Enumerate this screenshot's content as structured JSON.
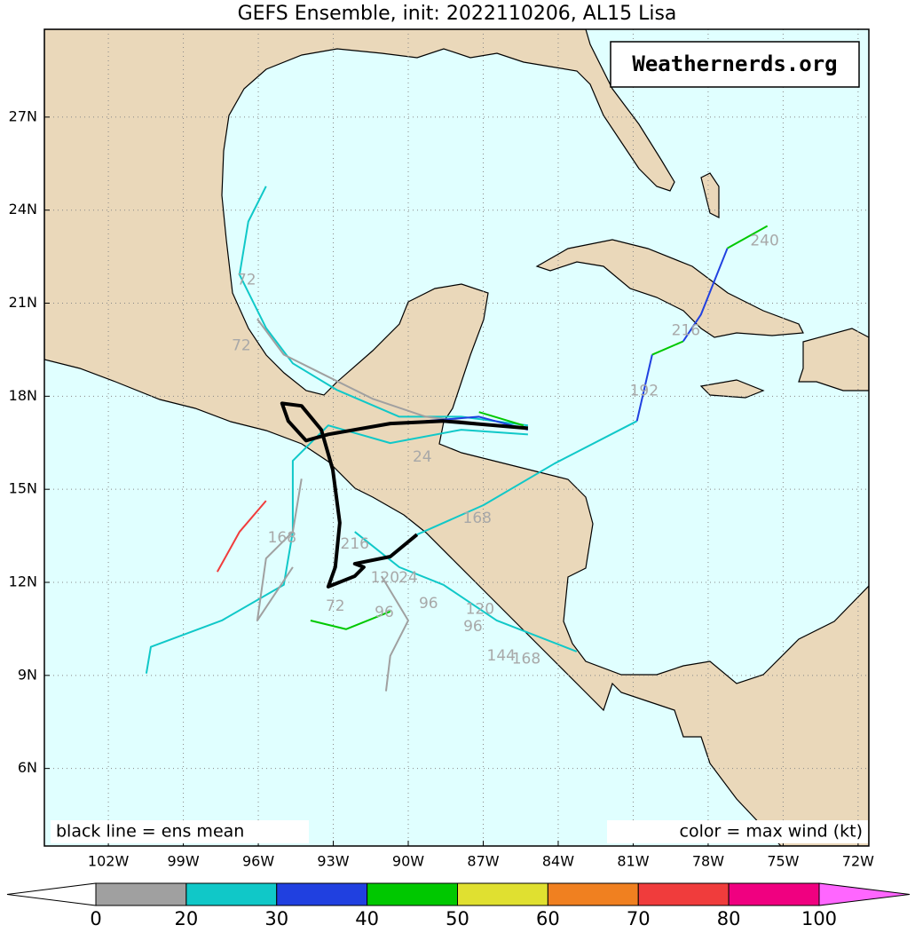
{
  "title": "GEFS Ensemble, init: 2022110206, AL15 Lisa",
  "watermark": "Weathernerds.org",
  "legend_left": "black line = ens mean",
  "legend_right": "color = max wind (kt)",
  "xlim": [
    -104.56,
    -71.57
  ],
  "ylim": [
    3.5,
    29.83
  ],
  "lon_ticks": [
    {
      "value": -102,
      "label": "102W"
    },
    {
      "value": -99,
      "label": "99W"
    },
    {
      "value": -96,
      "label": "96W"
    },
    {
      "value": -93,
      "label": "93W"
    },
    {
      "value": -90,
      "label": "90W"
    },
    {
      "value": -87,
      "label": "87W"
    },
    {
      "value": -84,
      "label": "84W"
    },
    {
      "value": -81,
      "label": "81W"
    },
    {
      "value": -78,
      "label": "78W"
    },
    {
      "value": -75,
      "label": "75W"
    },
    {
      "value": -72,
      "label": "72W"
    }
  ],
  "lat_ticks": [
    {
      "value": 6,
      "label": "6N"
    },
    {
      "value": 9,
      "label": "9N"
    },
    {
      "value": 12,
      "label": "12N"
    },
    {
      "value": 15,
      "label": "15N"
    },
    {
      "value": 18,
      "label": "18N"
    },
    {
      "value": 21,
      "label": "21N"
    },
    {
      "value": 24,
      "label": "24N"
    },
    {
      "value": 27,
      "label": "27N"
    }
  ],
  "colorbar": {
    "bounds": [
      0,
      20,
      30,
      40,
      50,
      60,
      70,
      80,
      100
    ],
    "colors": [
      "#a0a0a0",
      "#10c8c8",
      "#2040e0",
      "#00c800",
      "#e0e030",
      "#f08020",
      "#f03c3c",
      "#f00080"
    ],
    "under_color": "#ffffff",
    "over_color": "#ff66ff"
  },
  "mean_track": {
    "lon": [
      -85.21,
      -88.59,
      -90.72,
      -93.2,
      -94.09,
      -94.8,
      -95.05,
      -94.27,
      -93.48,
      -93.02,
      -92.74,
      -92.92,
      -93.2,
      -92.14,
      -91.78,
      -92.14,
      -90.72,
      -89.65
    ],
    "lat": [
      16.97,
      17.2,
      17.12,
      16.77,
      16.57,
      17.2,
      17.77,
      17.69,
      16.92,
      15.63,
      13.92,
      12.49,
      11.86,
      12.2,
      12.49,
      12.6,
      12.83,
      13.54
    ]
  },
  "tracks": [
    {
      "color": "#10c8c8",
      "lon": [
        -85.21,
        -87.88,
        -90.36,
        -92.85,
        -94.62,
        -95.69,
        -96.75,
        -96.4,
        -95.69
      ],
      "lat": [
        17.06,
        17.34,
        17.34,
        18.2,
        19.06,
        20.2,
        21.92,
        23.63,
        24.77
      ]
    },
    {
      "color": "#10c8c8",
      "lon": [
        -85.21,
        -87.88,
        -90.72,
        -93.2,
        -94.62,
        -94.62,
        -94.98,
        -97.46,
        -100.3,
        -100.48
      ],
      "lat": [
        16.77,
        16.92,
        16.49,
        17.06,
        15.92,
        13.63,
        11.92,
        10.77,
        9.92,
        9.06
      ]
    },
    {
      "color": "#a0a0a0",
      "lon": [
        -86.46,
        -89.3,
        -91.43,
        -93.56,
        -94.98,
        -96.04
      ],
      "lat": [
        17.06,
        17.34,
        17.92,
        18.77,
        19.34,
        20.49
      ]
    },
    {
      "color": "#10c8c8",
      "lon": [
        -89.65,
        -86.99,
        -84.15,
        -80.85
      ],
      "lat": [
        13.54,
        14.49,
        15.83,
        17.2
      ]
    },
    {
      "color": "#2040e0",
      "lon": [
        -80.85,
        -80.24
      ],
      "lat": [
        17.2,
        19.34
      ]
    },
    {
      "color": "#00c800",
      "lon": [
        -80.24,
        -79.0
      ],
      "lat": [
        19.34,
        19.77
      ]
    },
    {
      "color": "#2040e0",
      "lon": [
        -79.0,
        -78.29,
        -77.23
      ],
      "lat": [
        19.77,
        20.63,
        22.77
      ]
    },
    {
      "color": "#00c800",
      "lon": [
        -77.23,
        -75.63
      ],
      "lat": [
        22.77,
        23.49
      ]
    },
    {
      "color": "#2040e0",
      "lon": [
        -85.21,
        -87.17,
        -89.3
      ],
      "lat": [
        16.92,
        17.34,
        17.2
      ]
    },
    {
      "color": "#00c800",
      "lon": [
        -85.39,
        -87.17
      ],
      "lat": [
        17.06,
        17.49
      ]
    },
    {
      "color": "#a0a0a0",
      "lon": [
        -94.27,
        -94.62,
        -95.69,
        -96.04,
        -94.62
      ],
      "lat": [
        15.34,
        13.63,
        12.77,
        10.77,
        12.49
      ]
    },
    {
      "color": "#10c8c8",
      "lon": [
        -92.14,
        -90.36,
        -88.59,
        -86.46,
        -83.26
      ],
      "lat": [
        13.63,
        12.49,
        11.92,
        10.77,
        9.77
      ]
    },
    {
      "color": "#f03c3c",
      "lon": [
        -95.69,
        -96.75,
        -97.64
      ],
      "lat": [
        14.63,
        13.63,
        12.34
      ]
    },
    {
      "color": "#a0a0a0",
      "lon": [
        -91.07,
        -90.0,
        -90.72,
        -90.89
      ],
      "lat": [
        12.2,
        10.77,
        9.63,
        8.49
      ]
    },
    {
      "color": "#00c800",
      "lon": [
        -93.91,
        -92.49,
        -90.72
      ],
      "lat": [
        10.77,
        10.49,
        11.06
      ]
    }
  ],
  "hour_labels": [
    {
      "hour": 240,
      "lon": -75.74,
      "lat": 23.0
    },
    {
      "hour": 216,
      "lon": -78.89,
      "lat": 20.12
    },
    {
      "hour": 192,
      "lon": -80.56,
      "lat": 18.17
    },
    {
      "hour": 168,
      "lon": -87.24,
      "lat": 14.06
    },
    {
      "hour": 168,
      "lon": -95.05,
      "lat": 13.43
    },
    {
      "hour": 216,
      "lon": -92.14,
      "lat": 13.23
    },
    {
      "hour": 120,
      "lon": -90.93,
      "lat": 12.14
    },
    {
      "hour": 24,
      "lon": -90.0,
      "lat": 12.14
    },
    {
      "hour": 96,
      "lon": -89.19,
      "lat": 11.32
    },
    {
      "hour": 120,
      "lon": -87.13,
      "lat": 11.12
    },
    {
      "hour": 96,
      "lon": -87.41,
      "lat": 10.57
    },
    {
      "hour": 72,
      "lon": -92.92,
      "lat": 11.23
    },
    {
      "hour": 96,
      "lon": -90.96,
      "lat": 11.03
    },
    {
      "hour": 144,
      "lon": -86.28,
      "lat": 9.63
    },
    {
      "hour": 168,
      "lon": -85.28,
      "lat": 9.52
    },
    {
      "hour": 72,
      "lon": -96.47,
      "lat": 21.74
    },
    {
      "hour": 72,
      "lon": -96.68,
      "lat": 19.63
    },
    {
      "hour": 24,
      "lon": -89.44,
      "lat": 16.03
    }
  ]
}
